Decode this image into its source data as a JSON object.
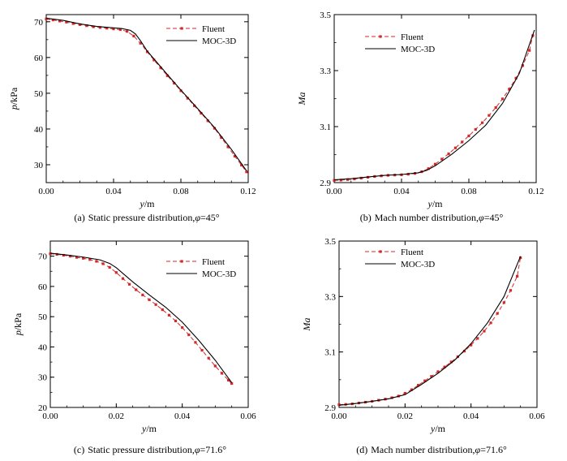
{
  "colors": {
    "fluent": "#d62728",
    "moc": "#000000",
    "axis": "#000000"
  },
  "chart_data": [
    {
      "type": "line",
      "caption_label": "(a)",
      "caption_text": "Static pressure distribution,",
      "caption_phi": "φ",
      "caption_value": "=45°",
      "xlabel_var": "y",
      "xlabel_unit": "/m",
      "ylabel_var": "p",
      "ylabel_unit": "/kPa",
      "xlim": [
        0,
        0.12
      ],
      "ylim": [
        25,
        72
      ],
      "xticks": [
        "0.00",
        "0.04",
        "0.08",
        "0.12"
      ],
      "yticks": [
        "30",
        "40",
        "50",
        "60",
        "70"
      ],
      "legend_position": "top-right",
      "series": [
        {
          "name": "Fluent",
          "style": "dashed-marker",
          "x": [
            0.0,
            0.004,
            0.008,
            0.012,
            0.016,
            0.02,
            0.024,
            0.028,
            0.032,
            0.036,
            0.04,
            0.044,
            0.048,
            0.052,
            0.056,
            0.06,
            0.064,
            0.068,
            0.072,
            0.076,
            0.08,
            0.084,
            0.088,
            0.092,
            0.096,
            0.1,
            0.104,
            0.108,
            0.112,
            0.116,
            0.119
          ],
          "y": [
            70.8,
            70.5,
            70.2,
            69.9,
            69.5,
            69.2,
            68.9,
            68.6,
            68.4,
            68.2,
            68.0,
            67.8,
            67.3,
            66.0,
            64.0,
            61.6,
            59.3,
            57.1,
            54.9,
            52.8,
            50.7,
            48.6,
            46.5,
            44.4,
            42.3,
            40.2,
            37.6,
            35.0,
            32.4,
            29.9,
            28.0
          ]
        },
        {
          "name": "MOC-3D",
          "style": "solid",
          "x": [
            0.0,
            0.01,
            0.02,
            0.03,
            0.04,
            0.045,
            0.05,
            0.053,
            0.056,
            0.06,
            0.07,
            0.08,
            0.09,
            0.1,
            0.11,
            0.119
          ],
          "y": [
            71.0,
            70.4,
            69.4,
            68.7,
            68.3,
            68.1,
            67.6,
            66.6,
            64.7,
            61.8,
            56.3,
            50.9,
            45.7,
            40.4,
            34.3,
            28.3
          ]
        }
      ]
    },
    {
      "type": "line",
      "caption_label": "(b)",
      "caption_text": "Mach number distribution,",
      "caption_phi": "φ",
      "caption_value": "=45°",
      "xlabel_var": "y",
      "xlabel_unit": "/m",
      "ylabel_var": "Ma",
      "ylabel_unit": "",
      "xlim": [
        0,
        0.12
      ],
      "ylim": [
        2.9,
        3.5
      ],
      "xticks": [
        "0.00",
        "0.04",
        "0.08",
        "0.12"
      ],
      "yticks": [
        "2.9",
        "3.1",
        "3.3",
        "3.5"
      ],
      "legend_position": "top-left",
      "series": [
        {
          "name": "Fluent",
          "style": "dashed-marker",
          "x": [
            0.0,
            0.004,
            0.008,
            0.012,
            0.016,
            0.02,
            0.024,
            0.028,
            0.032,
            0.036,
            0.04,
            0.044,
            0.048,
            0.052,
            0.056,
            0.06,
            0.064,
            0.068,
            0.072,
            0.076,
            0.08,
            0.084,
            0.088,
            0.092,
            0.096,
            0.1,
            0.104,
            0.108,
            0.112,
            0.116,
            0.118
          ],
          "y": [
            2.908,
            2.909,
            2.911,
            2.913,
            2.916,
            2.919,
            2.922,
            2.924,
            2.926,
            2.927,
            2.928,
            2.93,
            2.933,
            2.939,
            2.95,
            2.966,
            2.984,
            3.003,
            3.024,
            3.045,
            3.067,
            3.09,
            3.114,
            3.14,
            3.168,
            3.199,
            3.234,
            3.273,
            3.318,
            3.372,
            3.425
          ]
        },
        {
          "name": "MOC-3D",
          "style": "solid",
          "x": [
            0.0,
            0.01,
            0.02,
            0.03,
            0.04,
            0.05,
            0.055,
            0.06,
            0.07,
            0.08,
            0.09,
            0.1,
            0.11,
            0.119
          ],
          "y": [
            2.91,
            2.914,
            2.92,
            2.926,
            2.929,
            2.935,
            2.944,
            2.96,
            3.002,
            3.05,
            3.105,
            3.183,
            3.29,
            3.445
          ]
        }
      ]
    },
    {
      "type": "line",
      "caption_label": "(c)",
      "caption_text": "Static pressure distribution,",
      "caption_phi": "φ",
      "caption_value": "=71.6°",
      "xlabel_var": "y",
      "xlabel_unit": "/m",
      "ylabel_var": "p",
      "ylabel_unit": "/kPa",
      "xlim": [
        0,
        0.06
      ],
      "ylim": [
        20,
        75
      ],
      "xticks": [
        "0.00",
        "0.02",
        "0.04",
        "0.06"
      ],
      "yticks": [
        "20",
        "30",
        "40",
        "50",
        "60",
        "70"
      ],
      "legend_position": "top-right",
      "series": [
        {
          "name": "Fluent",
          "style": "dashed-marker",
          "x": [
            0.0,
            0.002,
            0.004,
            0.006,
            0.008,
            0.01,
            0.012,
            0.014,
            0.016,
            0.018,
            0.02,
            0.022,
            0.024,
            0.026,
            0.028,
            0.03,
            0.032,
            0.034,
            0.036,
            0.038,
            0.04,
            0.042,
            0.044,
            0.046,
            0.048,
            0.05,
            0.052,
            0.054,
            0.055
          ],
          "y": [
            70.8,
            70.6,
            70.3,
            70.0,
            69.6,
            69.3,
            68.9,
            68.3,
            67.5,
            66.3,
            64.6,
            62.6,
            60.7,
            58.9,
            57.2,
            55.6,
            54.0,
            52.3,
            50.5,
            48.6,
            46.4,
            44.0,
            41.5,
            38.9,
            36.3,
            33.7,
            31.3,
            29.0,
            27.9
          ]
        },
        {
          "name": "MOC-3D",
          "style": "solid",
          "x": [
            0.0,
            0.005,
            0.01,
            0.015,
            0.018,
            0.02,
            0.025,
            0.03,
            0.035,
            0.04,
            0.045,
            0.05,
            0.055
          ],
          "y": [
            71.0,
            70.4,
            69.7,
            68.8,
            67.6,
            66.2,
            61.5,
            57.2,
            53.1,
            48.2,
            42.2,
            35.6,
            28.2
          ]
        }
      ]
    },
    {
      "type": "line",
      "caption_label": "(d)",
      "caption_text": "Mach number distribution,",
      "caption_phi": "φ",
      "caption_value": "=71.6°",
      "xlabel_var": "y",
      "xlabel_unit": "/m",
      "ylabel_var": "Ma",
      "ylabel_unit": "",
      "xlim": [
        0,
        0.06
      ],
      "ylim": [
        2.9,
        3.5
      ],
      "xticks": [
        "0.00",
        "0.02",
        "0.04",
        "0.06"
      ],
      "yticks": [
        "2.9",
        "3.1",
        "3.3",
        "3.5"
      ],
      "legend_position": "top-left",
      "series": [
        {
          "name": "Fluent",
          "style": "dashed-marker",
          "x": [
            0.0,
            0.002,
            0.004,
            0.006,
            0.008,
            0.01,
            0.012,
            0.014,
            0.016,
            0.018,
            0.02,
            0.022,
            0.024,
            0.026,
            0.028,
            0.03,
            0.032,
            0.034,
            0.036,
            0.038,
            0.04,
            0.042,
            0.044,
            0.046,
            0.048,
            0.05,
            0.052,
            0.054,
            0.055
          ],
          "y": [
            2.91,
            2.911,
            2.913,
            2.916,
            2.919,
            2.922,
            2.926,
            2.93,
            2.935,
            2.941,
            2.951,
            2.964,
            2.98,
            2.996,
            3.012,
            3.029,
            3.046,
            3.064,
            3.083,
            3.103,
            3.125,
            3.149,
            3.175,
            3.205,
            3.239,
            3.278,
            3.322,
            3.373,
            3.44
          ]
        },
        {
          "name": "MOC-3D",
          "style": "solid",
          "x": [
            0.0,
            0.005,
            0.01,
            0.015,
            0.02,
            0.025,
            0.03,
            0.035,
            0.04,
            0.045,
            0.05,
            0.055
          ],
          "y": [
            2.908,
            2.914,
            2.922,
            2.931,
            2.946,
            2.983,
            3.023,
            3.07,
            3.13,
            3.205,
            3.3,
            3.445
          ]
        }
      ]
    }
  ]
}
